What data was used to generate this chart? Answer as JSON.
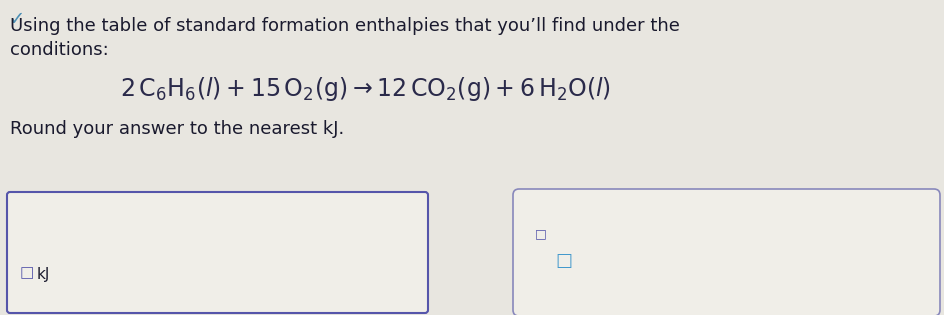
{
  "line1": "Using the table of standard formation enthalpies that you’ll find under the ",
  "line2": "conditions:",
  "line3": "Round your answer to the nearest kJ.",
  "bg_color": "#e8e6e0",
  "text_color": "#1a1a2e",
  "eq_color": "#2a2a4a",
  "check_color": "#4a8fb5",
  "box1_border": "#5555aa",
  "box2_border": "#8888bb",
  "box_face": "#f0eee8",
  "icon_color": "#5555aa",
  "icon2_color": "#4499cc"
}
